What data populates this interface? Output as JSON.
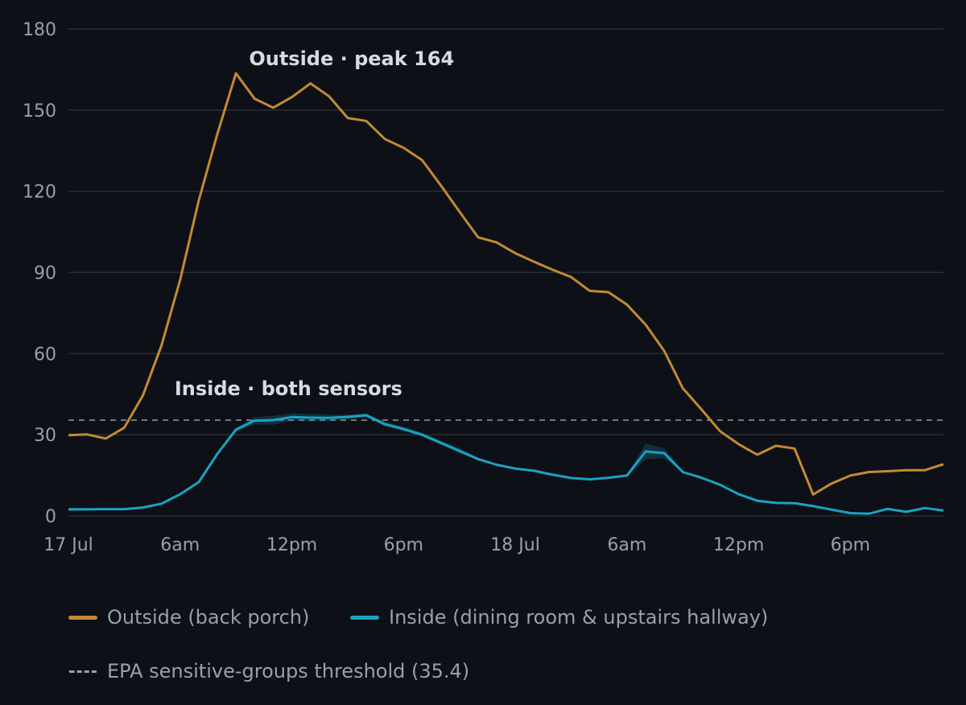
{
  "chart_data": {
    "type": "line",
    "ylim": [
      0,
      180
    ],
    "yticks": [
      0,
      30,
      60,
      90,
      120,
      150,
      180
    ],
    "x_range": [
      0,
      47
    ],
    "xticks": [
      {
        "x": 0,
        "label": "17 Jul"
      },
      {
        "x": 6,
        "label": "6am"
      },
      {
        "x": 12,
        "label": "12pm"
      },
      {
        "x": 18,
        "label": "6pm"
      },
      {
        "x": 24,
        "label": "18 Jul"
      },
      {
        "x": 30,
        "label": "6am"
      },
      {
        "x": 36,
        "label": "12pm"
      },
      {
        "x": 42,
        "label": "6pm"
      }
    ],
    "grid": true,
    "series": [
      {
        "name": "Outside (back porch)",
        "color": "#c28a35",
        "values": [
          29.8,
          30.1,
          28.6,
          32.6,
          44.5,
          63.0,
          87.3,
          116.6,
          141.2,
          163.6,
          154.2,
          150.9,
          154.8,
          159.9,
          155.1,
          147.1,
          146.0,
          139.3,
          136.1,
          131.5,
          122.2,
          112.5,
          103.0,
          101.1,
          97.1,
          94.0,
          91.0,
          88.3,
          83.2,
          82.7,
          78.1,
          70.7,
          61.0,
          47.2,
          39.4,
          31.3,
          26.5,
          22.6,
          25.9,
          24.9,
          7.9,
          12.0,
          14.9,
          16.2,
          16.5,
          16.9,
          16.9,
          19.1
        ]
      },
      {
        "name": "Inside (dining room & upstairs hallway)",
        "color": "#1aa3c2",
        "values": [
          2.4,
          2.4,
          2.5,
          2.5,
          3.1,
          4.5,
          8.0,
          12.5,
          22.9,
          31.9,
          35.2,
          35.4,
          36.5,
          36.3,
          36.2,
          36.6,
          37.2,
          33.9,
          32.1,
          30.0,
          27.0,
          24.0,
          21.0,
          18.9,
          17.5,
          16.7,
          15.2,
          14.0,
          13.5,
          14.1,
          14.9,
          23.8,
          23.2,
          16.2,
          14.1,
          11.5,
          8.0,
          5.6,
          4.8,
          4.7,
          3.6,
          2.3,
          1.0,
          0.8,
          2.6,
          1.5,
          2.9,
          2.0
        ],
        "band_low": [
          2.2,
          2.2,
          2.3,
          2.3,
          2.9,
          4.3,
          7.7,
          12.2,
          22.5,
          31.2,
          33.8,
          33.7,
          35.2,
          35.0,
          35.0,
          35.8,
          36.5,
          33.0,
          31.4,
          29.3,
          26.2,
          23.3,
          20.5,
          18.5,
          17.2,
          16.4,
          15.0,
          13.8,
          13.3,
          13.8,
          14.5,
          20.8,
          21.4,
          15.8,
          13.8,
          11.2,
          7.8,
          5.4,
          4.6,
          4.5,
          3.4,
          2.1,
          0.8,
          0.6,
          2.3,
          1.2,
          2.6,
          1.8
        ],
        "band_high": [
          2.6,
          2.6,
          2.7,
          2.7,
          3.3,
          4.7,
          8.3,
          12.8,
          23.3,
          32.5,
          36.5,
          37.0,
          37.9,
          37.7,
          37.5,
          37.4,
          37.9,
          34.9,
          32.9,
          30.8,
          27.9,
          25.1,
          21.6,
          19.3,
          17.8,
          17.0,
          15.4,
          14.2,
          13.7,
          14.4,
          15.3,
          26.7,
          25.0,
          16.6,
          14.4,
          11.8,
          8.2,
          5.8,
          5.0,
          4.9,
          3.8,
          2.5,
          1.2,
          1.0,
          2.9,
          1.8,
          3.2,
          2.2
        ]
      }
    ],
    "threshold": {
      "name": "EPA sensitive-groups threshold (35.4)",
      "value": 35.4,
      "color": "#8a9099"
    },
    "annotations": [
      {
        "text": "Outside · peak 164",
        "x": 9.7,
        "y": 169
      },
      {
        "text": "Inside · both sensors",
        "x": 5.7,
        "y": 47
      }
    ],
    "legend_position": "bottom"
  },
  "colors": {
    "background": "#0d1016",
    "grid": "#2a2e36",
    "text": "#9aa0a8"
  }
}
